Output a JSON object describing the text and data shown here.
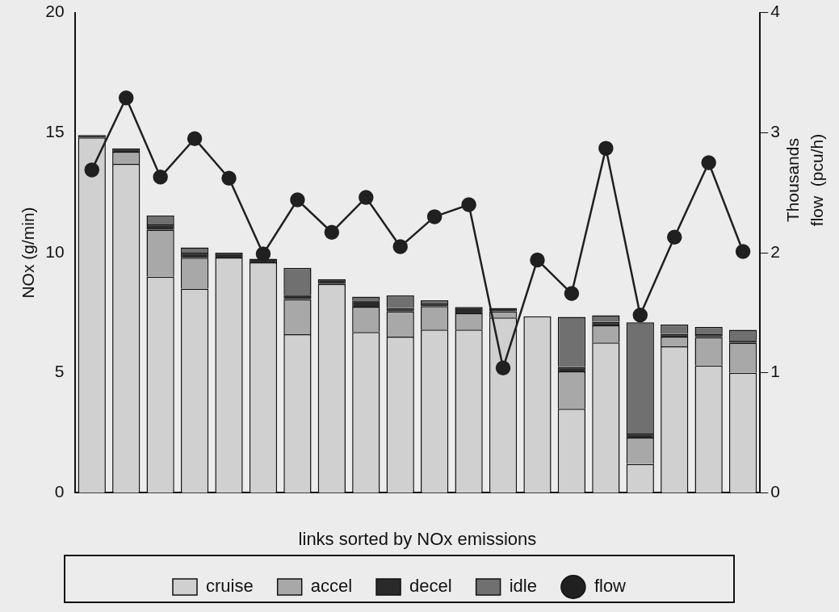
{
  "chart_data": {
    "type": "bar",
    "stacked": true,
    "xlabel": "links sorted by NOx emissions",
    "ylabel": "NOx (g/min)",
    "y2label": "flow  (pcu/h)",
    "annotations": [
      "Thousands"
    ],
    "categories": [
      null,
      null,
      null,
      null,
      null,
      null,
      null,
      null,
      null,
      null,
      null,
      null,
      null,
      null,
      null,
      null,
      null,
      null,
      null,
      null
    ],
    "series": [
      {
        "name": "cruise",
        "color": "#d0d0d0",
        "values": [
          14.8,
          13.7,
          9.0,
          8.5,
          9.8,
          9.6,
          6.6,
          8.7,
          6.7,
          6.5,
          6.8,
          6.8,
          7.3,
          7.35,
          3.5,
          6.26,
          1.2,
          6.1,
          5.3,
          5.0
        ]
      },
      {
        "name": "accel",
        "color": "#a8a8a8",
        "values": [
          0,
          0.5,
          1.95,
          1.29,
          0,
          0,
          1.47,
          0,
          1.05,
          1.05,
          0.97,
          0.68,
          0.26,
          0,
          1.56,
          0.71,
          1.1,
          0.4,
          1.19,
          1.24
        ]
      },
      {
        "name": "decel",
        "color": "#2a2a2a",
        "values": [
          0.1,
          0.15,
          0.23,
          0.21,
          0.2,
          0.15,
          0.17,
          0.2,
          0.26,
          0.14,
          0.11,
          0.26,
          0.14,
          0,
          0.17,
          0.15,
          0.17,
          0.11,
          0.11,
          0.12
        ]
      },
      {
        "name": "idle",
        "color": "#707070",
        "values": [
          0,
          0,
          0.37,
          0.22,
          0,
          0,
          1.13,
          0,
          0.16,
          0.54,
          0.14,
          0,
          0,
          0,
          2.1,
          0.27,
          4.63,
          0.4,
          0.31,
          0.43
        ]
      },
      {
        "name": "flow",
        "type": "line",
        "axis": "y2",
        "color": "#202020",
        "marker": "circle",
        "values": [
          2.69,
          3.29,
          2.63,
          2.95,
          2.62,
          1.99,
          2.44,
          2.17,
          2.46,
          2.05,
          2.3,
          2.4,
          1.04,
          1.94,
          1.66,
          2.87,
          1.48,
          2.13,
          2.75,
          2.01
        ]
      }
    ],
    "ylim": [
      0,
      20
    ],
    "yticks": [
      0,
      5,
      10,
      15,
      20
    ],
    "y2lim": [
      0,
      4
    ],
    "y2ticks": [
      0,
      1,
      2,
      3,
      4
    ],
    "legend": "bottom",
    "grid": false
  }
}
